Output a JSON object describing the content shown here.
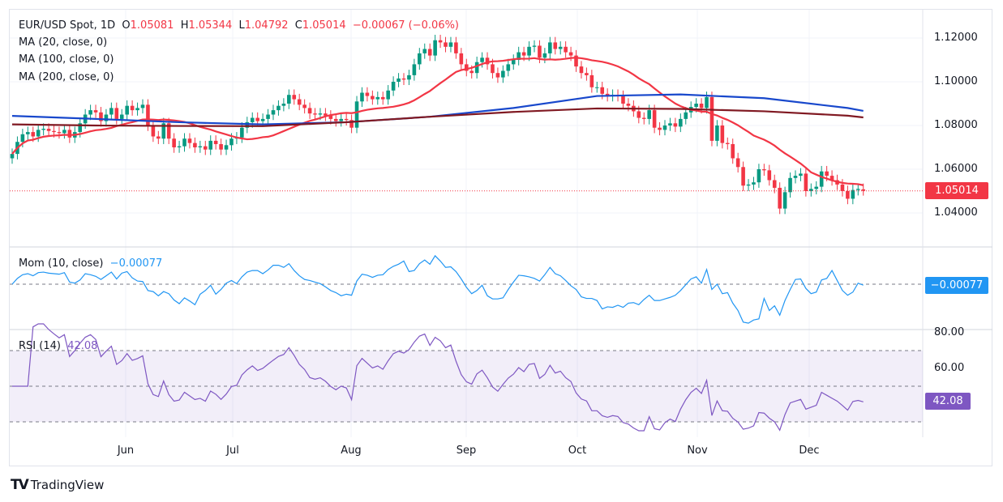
{
  "legend": {
    "symbol": "EUR/USD Spot, 1D",
    "o_label": "O",
    "open": "1.05081",
    "h_label": "H",
    "high": "1.05344",
    "l_label": "L",
    "low": "1.04792",
    "c_label": "C",
    "close": "1.05014",
    "change": "−0.00067 (−0.06%)",
    "ma20": "MA (20, close, 0)",
    "ma100": "MA (100, close, 0)",
    "ma200": "MA (200, close, 0)",
    "mom": "Mom (10, close)",
    "mom_value": "−0.00077",
    "rsi": "RSI (14)",
    "rsi_value": "42.08"
  },
  "price_axis": [
    "1.12000",
    "1.10000",
    "1.08000",
    "1.06000",
    "1.04000"
  ],
  "price_tag": "1.05014",
  "mom_tag": "−0.00077",
  "rsi_axis": [
    "80.00",
    "60.00"
  ],
  "rsi_tag": "42.08",
  "time_axis": [
    "Jun",
    "Jul",
    "Aug",
    "Sep",
    "Oct",
    "Nov",
    "Dec"
  ],
  "brand": "TradingView",
  "colors": {
    "up": "#089981",
    "down": "#f23645",
    "ma20": "#f23645",
    "ma100": "#1848cc",
    "ma200": "#801922",
    "mom": "#2196f3",
    "rsi": "#7e57c2"
  },
  "chart_data": {
    "type": "candlestick",
    "ylim": [
      1.03,
      1.125
    ],
    "closes": [
      1.067,
      1.0725,
      1.076,
      1.077,
      1.075,
      1.078,
      1.0785,
      1.0775,
      1.077,
      1.0765,
      1.078,
      1.0745,
      1.077,
      1.081,
      1.085,
      1.087,
      1.086,
      1.082,
      1.085,
      1.088,
      1.083,
      1.085,
      1.089,
      1.087,
      1.088,
      1.0895,
      1.08,
      1.075,
      1.074,
      1.081,
      1.074,
      1.07,
      1.0705,
      1.074,
      1.072,
      1.07,
      1.0705,
      1.069,
      1.073,
      1.0715,
      1.069,
      1.071,
      1.074,
      1.0745,
      1.079,
      1.0815,
      1.0835,
      1.082,
      1.083,
      1.085,
      1.087,
      1.089,
      1.09,
      1.094,
      1.092,
      1.0895,
      1.088,
      1.0855,
      1.085,
      1.0855,
      1.0845,
      1.083,
      1.082,
      1.083,
      1.0825,
      1.079,
      1.091,
      1.095,
      1.0935,
      1.092,
      1.093,
      1.092,
      1.096,
      1.1,
      1.1015,
      1.101,
      1.103,
      1.108,
      1.113,
      1.115,
      1.112,
      1.119,
      1.118,
      1.116,
      1.118,
      1.113,
      1.108,
      1.105,
      1.104,
      1.109,
      1.111,
      1.108,
      1.104,
      1.102,
      1.105,
      1.108,
      1.11,
      1.1135,
      1.112,
      1.116,
      1.1165,
      1.111,
      1.113,
      1.118,
      1.115,
      1.116,
      1.1135,
      1.112,
      1.107,
      1.104,
      1.103,
      1.0975,
      1.0975,
      1.0945,
      1.0935,
      1.094,
      1.0935,
      1.09,
      1.089,
      1.0865,
      1.0835,
      1.083,
      1.087,
      1.079,
      1.078,
      1.08,
      1.081,
      1.0795,
      1.083,
      1.086,
      1.0885,
      1.09,
      1.088,
      1.093,
      1.073,
      1.08,
      1.072,
      1.0715,
      1.065,
      1.061,
      1.0525,
      1.053,
      1.054,
      1.06,
      1.0595,
      1.055,
      1.0515,
      1.042,
      1.0495,
      1.056,
      1.057,
      1.058,
      1.05,
      1.051,
      1.052,
      1.059,
      1.057,
      1.055,
      1.053,
      1.05,
      1.0465,
      1.0505,
      1.051,
      1.0501
    ],
    "ma100": [
      1.0844,
      1.083,
      1.0815,
      1.0805,
      1.0815,
      1.084,
      1.088,
      1.0935,
      1.0942,
      1.0925,
      1.088,
      1.0867
    ],
    "ma200": [
      1.0805,
      1.08,
      1.0798,
      1.0797,
      1.0815,
      1.084,
      1.0862,
      1.0878,
      1.0876,
      1.0865,
      1.0845,
      1.0837
    ],
    "last_bar": {
      "open": 1.05081,
      "high": 1.05344,
      "low": 1.04792,
      "close": 1.05014
    },
    "rsi_levels": [
      70,
      50,
      30
    ]
  }
}
